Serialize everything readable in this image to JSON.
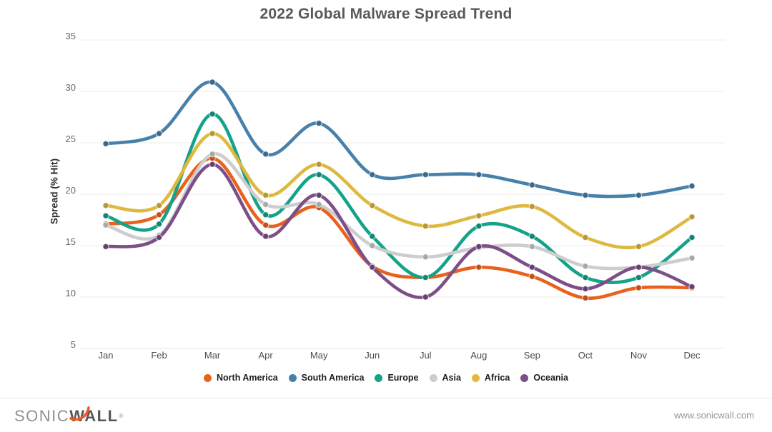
{
  "title": "2022 Global Malware Spread Trend",
  "chart_data": {
    "type": "line",
    "title": "2022 Global Malware Spread Trend",
    "xlabel": "",
    "ylabel": "Spread (% Hit)",
    "categories": [
      "Jan",
      "Feb",
      "Mar",
      "Apr",
      "May",
      "Jun",
      "Jul",
      "Aug",
      "Sep",
      "Oct",
      "Nov",
      "Dec"
    ],
    "y_ticks": [
      5,
      10,
      15,
      20,
      25,
      30,
      35
    ],
    "ylim": [
      5,
      35
    ],
    "grid": true,
    "line_smoothing": true,
    "legend_position": "bottom",
    "series": [
      {
        "name": "North America",
        "color": "#E8611D",
        "values": [
          17.1,
          18.0,
          23.5,
          17.0,
          18.7,
          13.0,
          11.9,
          12.9,
          12.0,
          9.9,
          10.9,
          10.9
        ]
      },
      {
        "name": "South America",
        "color": "#4781A9",
        "values": [
          24.9,
          25.9,
          30.9,
          23.9,
          26.9,
          21.9,
          21.9,
          21.9,
          20.9,
          19.9,
          19.9,
          20.8
        ]
      },
      {
        "name": "Europe",
        "color": "#13A28A",
        "values": [
          17.9,
          17.1,
          27.8,
          18.0,
          21.9,
          15.9,
          11.9,
          16.9,
          15.9,
          11.9,
          11.9,
          15.8
        ]
      },
      {
        "name": "Asia",
        "color": "#CDCDCD",
        "values": [
          17.0,
          16.0,
          23.9,
          19.0,
          19.0,
          15.0,
          13.9,
          14.8,
          14.9,
          13.0,
          12.9,
          13.8
        ]
      },
      {
        "name": "Africa",
        "color": "#DFB83E",
        "values": [
          18.9,
          18.9,
          25.9,
          19.9,
          22.9,
          18.9,
          16.9,
          17.9,
          18.8,
          15.8,
          14.9,
          17.8
        ]
      },
      {
        "name": "Oceania",
        "color": "#7D4E87",
        "values": [
          14.9,
          15.8,
          22.9,
          15.9,
          19.9,
          12.9,
          10.0,
          14.9,
          12.9,
          10.8,
          12.9,
          11.0
        ]
      }
    ],
    "gridline_color": "#ebebec"
  },
  "footer": {
    "logo_sonic": "SONIC",
    "logo_wall": "WALL",
    "registered": "®",
    "url": "www.sonicwall.com",
    "swoosh_color": "#F05A23"
  }
}
